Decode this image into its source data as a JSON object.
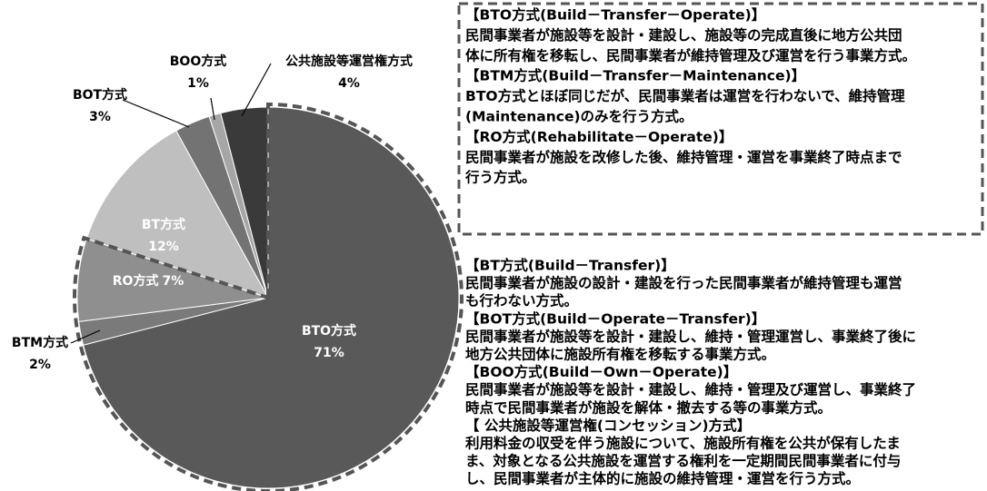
{
  "chart_data": {
    "type": "pie",
    "categories": [
      "BTO方式",
      "BTM方式",
      "RO方式",
      "BT方式",
      "BOT方式",
      "BOO方式",
      "公共施設等運営権方式"
    ],
    "values": [
      71,
      2,
      7,
      12,
      3,
      1,
      4
    ],
    "value_labels": [
      "71%",
      "2%",
      "7%",
      "12%",
      "3%",
      "1%",
      "4%"
    ],
    "colors": [
      "#595959",
      "#7a7a7a",
      "#8f8f8f",
      "#bfbfbf",
      "#737373",
      "#a6a6a6",
      "#3a3a3a"
    ]
  },
  "descriptions": [
    [
      {
        "heading": "【BTO方式(Build－Transfer－Operate)】",
        "lines": [
          "民間事業者が施設等を設計・建設し、施設等の完成直後に地方公共団",
          "体に所有権を移転し、民間事業者が維持管理及び運営を行う事業方式。"
        ]
      },
      {
        "heading": "【BTM方式(Build－Transfer－Maintenance)】",
        "lines": [
          "BTO方式とほぼ同じだが、民間事業者は運営を行わないで、維持管理",
          "(Maintenance)のみを行う方式。"
        ]
      },
      {
        "heading": "【RO方式(Rehabilitate－Operate)】",
        "lines": [
          "民間事業者が施設を改修した後、維持管理・運営を事業終了時点まで",
          "行う方式。"
        ]
      }
    ],
    [
      {
        "heading": "【BT方式(Build－Transfer)】",
        "lines": [
          "民間事業者が施設の設計・建設を行った民間事業者が維持管理も運営",
          "も行わない方式。"
        ]
      },
      {
        "heading": "【BOT方式(Build－Operate－Transfer)】",
        "lines": [
          "民間事業者が施設等を設計・建設し、維持・管理運営し、事業終了後に",
          "地方公共団体に施設所有権を移転する事業方式。"
        ]
      },
      {
        "heading": "【BOO方式(Build－Own－Operate)】",
        "lines": [
          "民間事業者が施設等を設計・建設し、維持・管理及び運営し、事業終了",
          "時点で民間事業者が施設を解体・撤去する等の事業方式。"
        ]
      },
      {
        "heading": "【 公共施設等運営権(コンセッション)方式】",
        "lines": [
          "利用料金の収受を伴う施設について、施設所有権を公共が保有したま",
          "ま、対象となる公共施設を運営する権利を一定期間民間事業者に付与",
          "し、民間事業者が主体的に施設の維持管理・運営を行う方式。"
        ]
      }
    ]
  ]
}
